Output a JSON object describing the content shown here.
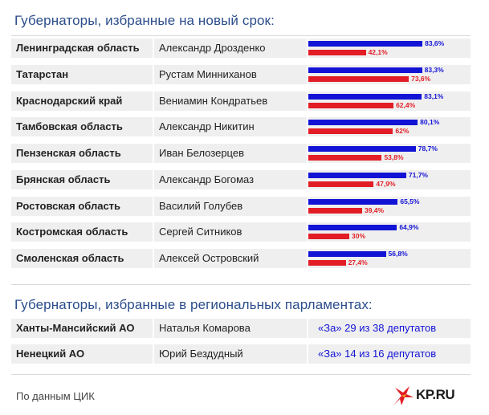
{
  "sections": {
    "new_term_title": "Губернаторы, избранные на новый срок:",
    "parliament_title": "Губернаторы, избранные в региональных парламентах:"
  },
  "chart_data": {
    "type": "bar",
    "categories": [
      "Ленинградская область",
      "Татарстан",
      "Краснодарский край",
      "Тамбовская область",
      "Пензенская область",
      "Брянская область",
      "Ростовская область",
      "Костромская область",
      "Смоленская область"
    ],
    "governors": [
      "Александр Дрозденко",
      "Рустам Минниханов",
      "Вениамин Кондратьев",
      "Александр Никитин",
      "Иван Белозерцев",
      "Александр Богомаз",
      "Василий Голубев",
      "Сергей Ситников",
      "Алексей Островский"
    ],
    "series": [
      {
        "color": "#1313d6",
        "values": [
          83.6,
          83.3,
          83.1,
          80.1,
          78.7,
          71.7,
          65.5,
          64.9,
          56.8
        ],
        "labels": [
          "83,6%",
          "83,3%",
          "83,1%",
          "80,1%",
          "78,7%",
          "71,7%",
          "65,5%",
          "64,9%",
          "56,8%"
        ]
      },
      {
        "color": "#e21d25",
        "values": [
          42.1,
          73.6,
          62.4,
          62,
          53.8,
          47.9,
          39.4,
          30,
          27.4
        ],
        "labels": [
          "42,1%",
          "73,6%",
          "62,4%",
          "62%",
          "53,8%",
          "47,9%",
          "39,4%",
          "30%",
          "27,4%"
        ]
      }
    ],
    "xlim": [
      0,
      100
    ]
  },
  "parliament": [
    {
      "region": "Ханты-Мансийский АО",
      "name": "Наталья Комарова",
      "vote": "«За» 29 из 38 депутатов"
    },
    {
      "region": "Ненецкий АО",
      "name": "Юрий Бездудный",
      "vote": "«За» 14 из 16 депутатов"
    }
  ],
  "footer": {
    "source": "По данным ЦИК",
    "logo_text": "KP.RU"
  },
  "colors": {
    "accent_blue": "#1313d6",
    "accent_red": "#e21d25",
    "title_color": "#2b4d8c",
    "row_background": "#efefef"
  }
}
